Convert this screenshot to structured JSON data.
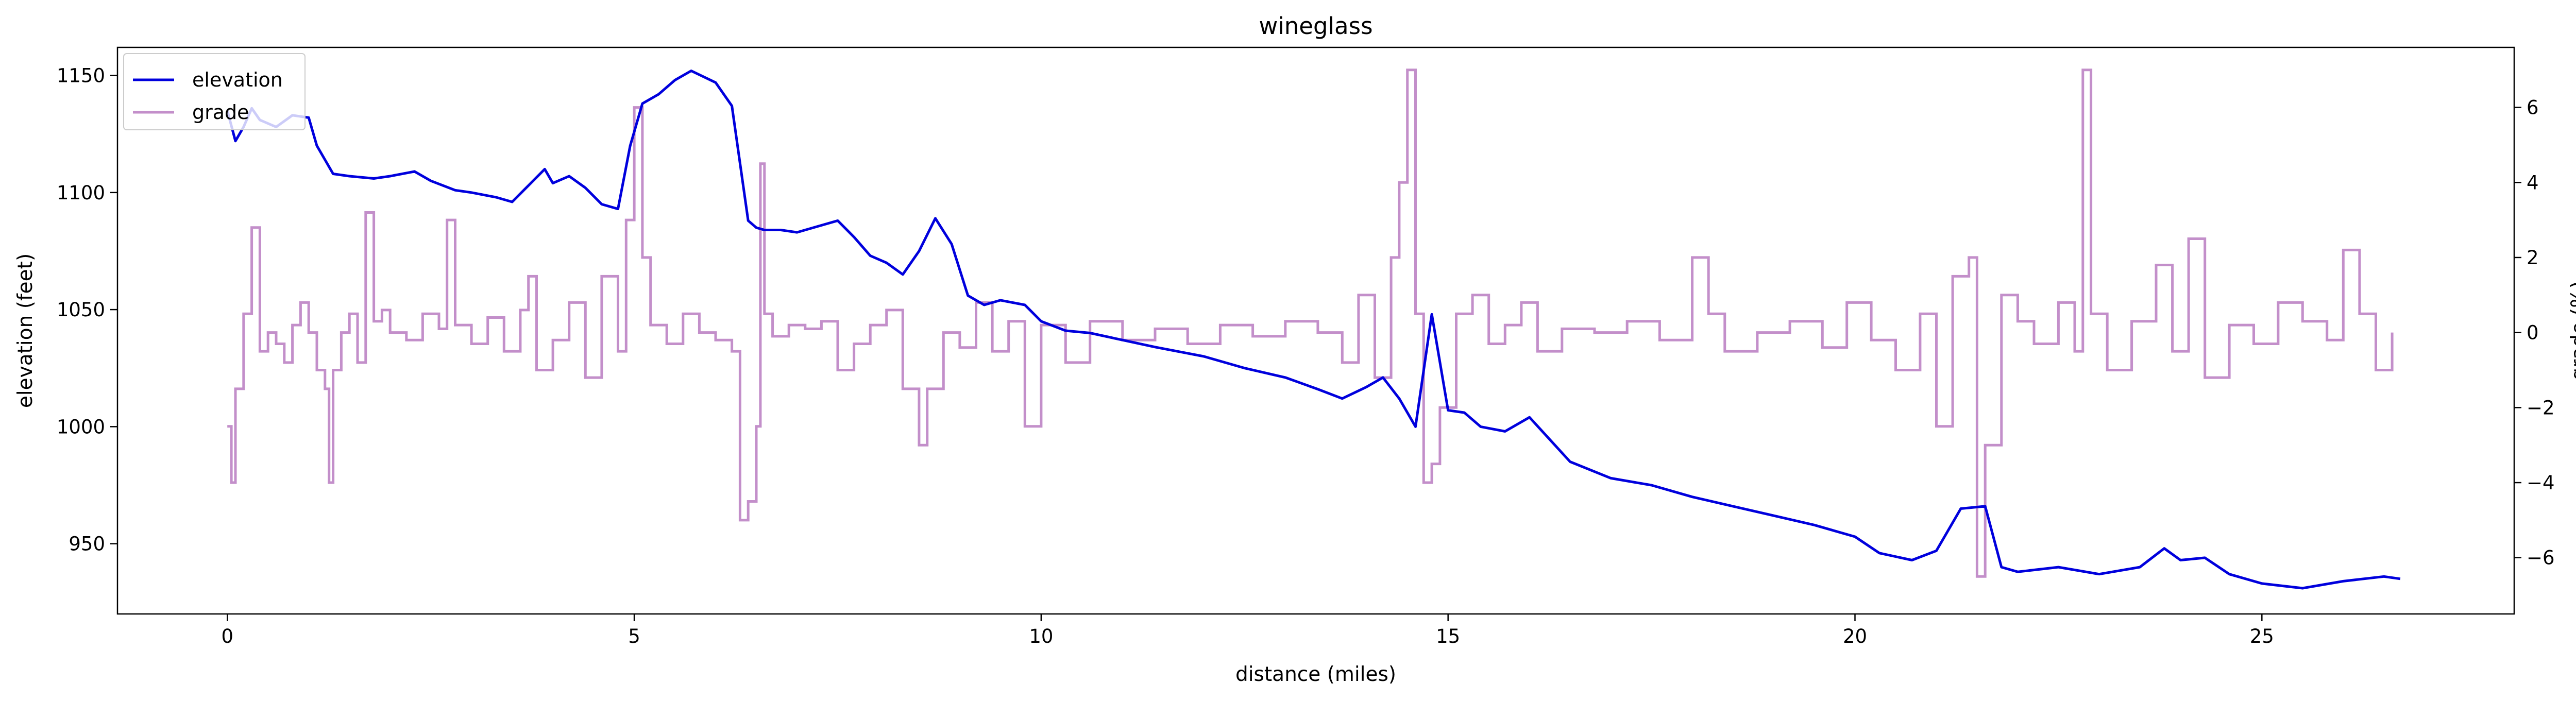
{
  "chart_data": {
    "type": "line",
    "title": "wineglass",
    "xlabel": "distance (miles)",
    "ylabel": "elevation (feet)",
    "y2label": "grade (%)",
    "xlim": [
      -1.35,
      28.1
    ],
    "ylim": [
      920,
      1162
    ],
    "y2lim": [
      -7.5,
      7.6
    ],
    "xticks": [
      0,
      5,
      10,
      15,
      20,
      25
    ],
    "yticks": [
      950,
      1000,
      1050,
      1100,
      1150
    ],
    "y2ticks": [
      -6,
      -4,
      -2,
      0,
      2,
      4,
      6
    ],
    "grid": false,
    "legend_position": "upper-left",
    "colors": {
      "elevation": "#0000dd",
      "grade": "#c38fca"
    },
    "series": [
      {
        "name": "elevation",
        "axis": "left",
        "x": [
          0,
          0.1,
          0.2,
          0.3,
          0.4,
          0.6,
          0.8,
          1.0,
          1.1,
          1.3,
          1.5,
          1.8,
          2.0,
          2.3,
          2.5,
          2.8,
          3.0,
          3.3,
          3.5,
          3.7,
          3.9,
          4.0,
          4.2,
          4.4,
          4.6,
          4.8,
          4.95,
          5.1,
          5.3,
          5.5,
          5.7,
          6.0,
          6.2,
          6.4,
          6.5,
          6.6,
          6.8,
          7.0,
          7.2,
          7.5,
          7.7,
          7.9,
          8.1,
          8.3,
          8.5,
          8.7,
          8.9,
          9.1,
          9.3,
          9.5,
          9.8,
          10.0,
          10.3,
          10.6,
          11.0,
          11.4,
          12.0,
          12.5,
          13.0,
          13.4,
          13.7,
          14.0,
          14.2,
          14.4,
          14.6,
          14.8,
          15.0,
          15.2,
          15.4,
          15.7,
          16.0,
          16.5,
          17.0,
          17.5,
          18.0,
          18.5,
          19.0,
          19.5,
          20.0,
          20.3,
          20.7,
          21.0,
          21.3,
          21.6,
          21.8,
          22.0,
          22.5,
          23.0,
          23.5,
          23.8,
          24.0,
          24.3,
          24.6,
          25.0,
          25.5,
          26.0,
          26.5,
          26.7
        ],
        "values": [
          1135,
          1122,
          1128,
          1136,
          1131,
          1128,
          1133,
          1132,
          1120,
          1108,
          1107,
          1106,
          1107,
          1109,
          1105,
          1101,
          1100,
          1098,
          1096,
          1103,
          1110,
          1104,
          1107,
          1102,
          1095,
          1093,
          1120,
          1138,
          1142,
          1148,
          1152,
          1147,
          1137,
          1088,
          1085,
          1084,
          1084,
          1083,
          1085,
          1088,
          1081,
          1073,
          1070,
          1065,
          1075,
          1089,
          1078,
          1056,
          1052,
          1054,
          1052,
          1045,
          1041,
          1040,
          1037,
          1034,
          1030,
          1025,
          1021,
          1016,
          1012,
          1017,
          1021,
          1012,
          1000,
          1048,
          1007,
          1006,
          1000,
          998,
          1004,
          985,
          978,
          975,
          970,
          966,
          962,
          958,
          953,
          946,
          943,
          947,
          965,
          966,
          940,
          938,
          940,
          937,
          940,
          948,
          943,
          944,
          937,
          933,
          931,
          934,
          936,
          935
        ]
      },
      {
        "name": "grade",
        "axis": "right",
        "x": [
          0,
          0.05,
          0.1,
          0.2,
          0.3,
          0.4,
          0.5,
          0.6,
          0.7,
          0.8,
          0.9,
          1.0,
          1.1,
          1.2,
          1.25,
          1.3,
          1.4,
          1.5,
          1.6,
          1.7,
          1.8,
          1.9,
          2.0,
          2.2,
          2.4,
          2.6,
          2.7,
          2.8,
          3.0,
          3.2,
          3.4,
          3.6,
          3.7,
          3.8,
          4.0,
          4.2,
          4.4,
          4.6,
          4.8,
          4.9,
          5.0,
          5.1,
          5.2,
          5.4,
          5.6,
          5.8,
          6.0,
          6.2,
          6.3,
          6.4,
          6.5,
          6.55,
          6.6,
          6.7,
          6.9,
          7.1,
          7.3,
          7.5,
          7.7,
          7.9,
          8.1,
          8.3,
          8.5,
          8.6,
          8.8,
          9.0,
          9.2,
          9.4,
          9.6,
          9.8,
          10.0,
          10.3,
          10.6,
          11.0,
          11.4,
          11.8,
          12.2,
          12.6,
          13.0,
          13.4,
          13.7,
          13.9,
          14.1,
          14.3,
          14.4,
          14.5,
          14.6,
          14.7,
          14.8,
          14.9,
          15.1,
          15.3,
          15.5,
          15.7,
          15.9,
          16.1,
          16.4,
          16.8,
          17.2,
          17.6,
          18.0,
          18.2,
          18.4,
          18.8,
          19.2,
          19.6,
          19.9,
          20.2,
          20.5,
          20.8,
          21.0,
          21.2,
          21.4,
          21.5,
          21.6,
          21.8,
          22.0,
          22.2,
          22.5,
          22.7,
          22.8,
          22.9,
          23.1,
          23.4,
          23.7,
          23.9,
          24.1,
          24.3,
          24.6,
          24.9,
          25.2,
          25.5,
          25.8,
          26.0,
          26.2,
          26.4,
          26.6
        ],
        "values": [
          -2.5,
          -4.0,
          -1.5,
          0.5,
          2.8,
          -0.5,
          0.0,
          -0.3,
          -0.8,
          0.2,
          0.8,
          0.0,
          -1.0,
          -1.5,
          -4.0,
          -1.0,
          0.0,
          0.5,
          -0.8,
          3.2,
          0.3,
          0.6,
          0.0,
          -0.2,
          0.5,
          0.1,
          3.0,
          0.2,
          -0.3,
          0.4,
          -0.5,
          0.6,
          1.5,
          -1.0,
          -0.2,
          0.8,
          -1.2,
          1.5,
          -0.5,
          3.0,
          6.0,
          2.0,
          0.2,
          -0.3,
          0.5,
          0.0,
          -0.2,
          -0.5,
          -5.0,
          -4.5,
          -2.5,
          4.5,
          0.5,
          -0.1,
          0.2,
          0.1,
          0.3,
          -1.0,
          -0.3,
          0.2,
          0.6,
          -1.5,
          -3.0,
          -1.5,
          0.0,
          -0.4,
          0.8,
          -0.5,
          0.3,
          -2.5,
          0.2,
          -0.8,
          0.3,
          -0.2,
          0.1,
          -0.3,
          0.2,
          -0.1,
          0.3,
          0.0,
          -0.8,
          1.0,
          -1.2,
          2.0,
          4.0,
          7.0,
          0.5,
          -4.0,
          -3.5,
          -2.0,
          0.5,
          1.0,
          -0.3,
          0.2,
          0.8,
          -0.5,
          0.1,
          0.0,
          0.3,
          -0.2,
          2.0,
          0.5,
          -0.5,
          0.0,
          0.3,
          -0.4,
          0.8,
          -0.2,
          -1.0,
          0.5,
          -2.5,
          1.5,
          2.0,
          -6.5,
          -3.0,
          1.0,
          0.3,
          -0.3,
          0.8,
          -0.5,
          7.0,
          0.5,
          -1.0,
          0.3,
          1.8,
          -0.5,
          2.5,
          -1.2,
          0.2,
          -0.3,
          0.8,
          0.3,
          -0.2,
          2.2,
          0.5,
          -1.0,
          0.0
        ]
      }
    ]
  }
}
